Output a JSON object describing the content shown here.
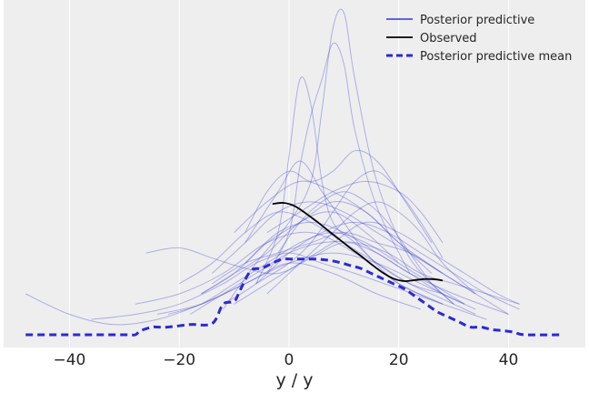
{
  "chart_data": {
    "type": "line",
    "title": "",
    "xlabel": "y / y",
    "ylabel": "",
    "xlim": [
      -52,
      54
    ],
    "ylim": [
      -0.0025,
      0.0655
    ],
    "xticks": [
      -40,
      -20,
      0,
      20,
      40
    ],
    "yticks_visible": false,
    "grid": true,
    "legend_position": "top-right",
    "colors": {
      "plot_bg": "#eeeeee",
      "grid": "#ffffff",
      "predictive": "#3333dd",
      "observed": "#000000",
      "mean": "#2a2ad6"
    },
    "legend": [
      {
        "label": "Posterior predictive",
        "style": "thin-blue"
      },
      {
        "label": "Observed",
        "style": "black"
      },
      {
        "label": "Posterior predictive mean",
        "style": "dashed-blue"
      }
    ],
    "series": [
      {
        "name": "Observed",
        "x": [
          -3,
          -1,
          1,
          3,
          5,
          7,
          9,
          11,
          13,
          15,
          17,
          19,
          21,
          23,
          25,
          27,
          28
        ],
        "y": [
          0.0256,
          0.0258,
          0.0252,
          0.0238,
          0.0222,
          0.0205,
          0.0188,
          0.0171,
          0.0155,
          0.0138,
          0.0122,
          0.011,
          0.0105,
          0.0107,
          0.0109,
          0.0108,
          0.0106
        ]
      },
      {
        "name": "Posterior predictive mean",
        "x": [
          -48,
          -35,
          -33,
          -29,
          -28,
          -27,
          -25,
          -24,
          -22,
          -18,
          -14,
          -12,
          -10,
          -9,
          -7,
          -5,
          -3,
          -2,
          -1,
          1,
          3,
          5,
          7,
          9,
          11,
          13,
          15,
          16,
          17,
          19,
          21,
          23,
          25,
          27,
          29,
          31,
          33,
          35,
          37,
          39,
          41,
          43,
          50
        ],
        "y": [
          0.0,
          0.0,
          0.0,
          0.0,
          0.0,
          0.0008,
          0.0015,
          0.0015,
          0.0015,
          0.002,
          0.0022,
          0.006,
          0.0065,
          0.0085,
          0.0125,
          0.013,
          0.014,
          0.0145,
          0.0148,
          0.0148,
          0.0148,
          0.0148,
          0.0146,
          0.0142,
          0.0136,
          0.013,
          0.012,
          0.0115,
          0.011,
          0.01,
          0.009,
          0.0075,
          0.006,
          0.0045,
          0.0035,
          0.0025,
          0.0015,
          0.0015,
          0.001,
          0.0008,
          0.0005,
          0.0,
          0.0
        ]
      }
    ],
    "posterior_predictive_samples": [
      {
        "x": [
          -6,
          -2,
          0,
          2,
          4,
          6,
          8,
          12,
          16,
          22,
          28
        ],
        "y": [
          0.01,
          0.02,
          0.035,
          0.05,
          0.045,
          0.03,
          0.022,
          0.018,
          0.014,
          0.01,
          0.008
        ]
      },
      {
        "x": [
          -4,
          0,
          2,
          4,
          6,
          8,
          10,
          12,
          16,
          22
        ],
        "y": [
          0.012,
          0.02,
          0.033,
          0.043,
          0.05,
          0.057,
          0.053,
          0.04,
          0.025,
          0.012
        ]
      },
      {
        "x": [
          -12,
          -6,
          0,
          4,
          6,
          8,
          10,
          12,
          16,
          22,
          30
        ],
        "y": [
          0.005,
          0.014,
          0.022,
          0.03,
          0.044,
          0.06,
          0.063,
          0.05,
          0.03,
          0.015,
          0.006
        ]
      },
      {
        "x": [
          -8,
          -2,
          2,
          6,
          10,
          14,
          20,
          28
        ],
        "y": [
          0.018,
          0.028,
          0.034,
          0.028,
          0.022,
          0.016,
          0.01,
          0.006
        ]
      },
      {
        "x": [
          -36,
          -28,
          -20,
          -12,
          -6,
          0,
          6,
          12,
          20,
          28,
          36
        ],
        "y": [
          0.003,
          0.004,
          0.006,
          0.01,
          0.014,
          0.016,
          0.014,
          0.012,
          0.009,
          0.006,
          0.003
        ]
      },
      {
        "x": [
          -48,
          -40,
          -32,
          -24,
          -16,
          -8,
          0,
          8,
          16,
          24
        ],
        "y": [
          0.008,
          0.004,
          0.002,
          0.003,
          0.006,
          0.01,
          0.014,
          0.012,
          0.008,
          0.005
        ]
      },
      {
        "x": [
          -26,
          -20,
          -14,
          -8,
          -2,
          4,
          10,
          16,
          22,
          30,
          40
        ],
        "y": [
          0.016,
          0.017,
          0.015,
          0.013,
          0.012,
          0.015,
          0.018,
          0.016,
          0.012,
          0.008,
          0.004
        ]
      },
      {
        "x": [
          -20,
          -14,
          -8,
          -2,
          4,
          10,
          16,
          22,
          28,
          34
        ],
        "y": [
          0.01,
          0.014,
          0.02,
          0.024,
          0.022,
          0.018,
          0.014,
          0.01,
          0.007,
          0.004
        ]
      },
      {
        "x": [
          -8,
          -4,
          0,
          4,
          8,
          12,
          16,
          20,
          26
        ],
        "y": [
          0.02,
          0.028,
          0.032,
          0.03,
          0.032,
          0.036,
          0.034,
          0.028,
          0.018
        ]
      },
      {
        "x": [
          -14,
          -8,
          -2,
          4,
          10,
          16,
          22,
          28,
          34
        ],
        "y": [
          0.012,
          0.018,
          0.024,
          0.026,
          0.024,
          0.02,
          0.016,
          0.012,
          0.008
        ]
      },
      {
        "x": [
          -10,
          -4,
          2,
          8,
          14,
          20,
          26
        ],
        "y": [
          0.02,
          0.026,
          0.03,
          0.028,
          0.024,
          0.018,
          0.012
        ]
      },
      {
        "x": [
          -16,
          -10,
          -4,
          2,
          8,
          14,
          20,
          28
        ],
        "y": [
          0.008,
          0.012,
          0.018,
          0.022,
          0.026,
          0.024,
          0.018,
          0.012
        ]
      },
      {
        "x": [
          -6,
          0,
          4,
          8,
          12,
          16,
          20,
          24,
          28
        ],
        "y": [
          0.01,
          0.014,
          0.018,
          0.024,
          0.03,
          0.032,
          0.028,
          0.022,
          0.015
        ]
      },
      {
        "x": [
          -4,
          0,
          4,
          8,
          12,
          16,
          20,
          24,
          28,
          34
        ],
        "y": [
          0.008,
          0.012,
          0.016,
          0.02,
          0.024,
          0.026,
          0.024,
          0.02,
          0.014,
          0.008
        ]
      },
      {
        "x": [
          -18,
          -12,
          -6,
          0,
          6,
          12,
          18,
          24,
          30,
          36,
          42
        ],
        "y": [
          0.004,
          0.008,
          0.012,
          0.016,
          0.018,
          0.018,
          0.016,
          0.012,
          0.01,
          0.008,
          0.006
        ]
      },
      {
        "x": [
          -12,
          -6,
          0,
          6,
          12,
          18,
          24,
          30,
          36,
          42
        ],
        "y": [
          0.006,
          0.01,
          0.016,
          0.02,
          0.022,
          0.02,
          0.016,
          0.012,
          0.008,
          0.005
        ]
      },
      {
        "x": [
          -28,
          -20,
          -12,
          -4,
          4,
          12,
          20,
          28
        ],
        "y": [
          0.006,
          0.008,
          0.012,
          0.018,
          0.02,
          0.016,
          0.01,
          0.006
        ]
      },
      {
        "x": [
          -24,
          -16,
          -8,
          0,
          8,
          16,
          24,
          32
        ],
        "y": [
          0.004,
          0.006,
          0.01,
          0.014,
          0.016,
          0.014,
          0.01,
          0.006
        ]
      },
      {
        "x": [
          -14,
          -8,
          -2,
          4,
          10,
          16,
          22,
          28,
          34,
          40
        ],
        "y": [
          0.01,
          0.014,
          0.016,
          0.018,
          0.02,
          0.018,
          0.016,
          0.012,
          0.008,
          0.004
        ]
      },
      {
        "x": [
          -10,
          -4,
          2,
          8,
          14,
          20,
          26,
          32,
          38,
          42
        ],
        "y": [
          0.006,
          0.01,
          0.014,
          0.018,
          0.022,
          0.02,
          0.016,
          0.012,
          0.008,
          0.006
        ]
      },
      {
        "x": [
          -2,
          2,
          6,
          10,
          14,
          18,
          22,
          26,
          30
        ],
        "y": [
          0.016,
          0.022,
          0.026,
          0.028,
          0.026,
          0.022,
          0.016,
          0.01,
          0.006
        ]
      },
      {
        "x": [
          -8,
          -2,
          4,
          10,
          16,
          22,
          28,
          34
        ],
        "y": [
          0.014,
          0.02,
          0.022,
          0.02,
          0.016,
          0.012,
          0.008,
          0.005
        ]
      },
      {
        "x": [
          -16,
          -10,
          -4,
          2,
          8,
          14,
          20
        ],
        "y": [
          0.008,
          0.012,
          0.016,
          0.022,
          0.024,
          0.02,
          0.014
        ]
      },
      {
        "x": [
          -4,
          2,
          8,
          14,
          20,
          24,
          28
        ],
        "y": [
          0.02,
          0.024,
          0.028,
          0.03,
          0.028,
          0.024,
          0.018
        ]
      },
      {
        "x": [
          -22,
          -16,
          -10,
          -4,
          2,
          8,
          14,
          20,
          26,
          32
        ],
        "y": [
          0.004,
          0.006,
          0.01,
          0.014,
          0.018,
          0.02,
          0.018,
          0.014,
          0.01,
          0.006
        ]
      }
    ]
  }
}
